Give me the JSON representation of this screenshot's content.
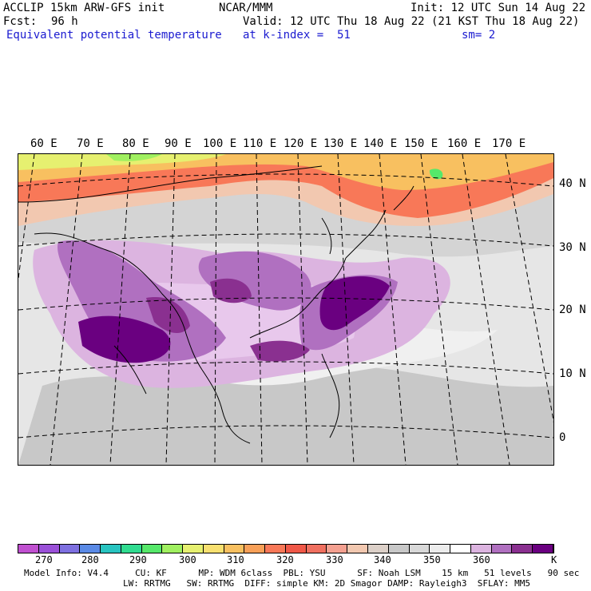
{
  "header": {
    "model": "ACCLIP 15km ARW-GFS init",
    "org": "NCAR/MMM",
    "init": "Init: 12 UTC Sun 14 Aug 22",
    "fcst_label": "Fcst:",
    "fcst_value": "96 h",
    "valid": "Valid: 12 UTC Thu 18 Aug 22 (21 KST Thu 18 Aug 22)",
    "variable": "Equivalent potential temperature",
    "level": "at k-index =  51",
    "smoothing": "sm= 2"
  },
  "map": {
    "longitude_labels": [
      "60 E",
      "70 E",
      "80 E",
      "90 E",
      "100 E",
      "110 E",
      "120 E",
      "130 E",
      "140 E",
      "150 E",
      "160 E",
      "170 E"
    ],
    "latitude_labels": [
      "40 N",
      "30 N",
      "20 N",
      "10 N",
      "0"
    ]
  },
  "colorbar": {
    "colors": [
      "#c050d0",
      "#9a50d8",
      "#7e70e0",
      "#5a8ae6",
      "#28c4c0",
      "#30dc90",
      "#56e86a",
      "#a0f060",
      "#e6f070",
      "#f8e070",
      "#f8c060",
      "#f8a058",
      "#f87858",
      "#f05848",
      "#f07060",
      "#f4a090",
      "#f2c8b0",
      "#dcd0c8",
      "#c8c8c8",
      "#d8d8d8",
      "#ececec",
      "#ffffff",
      "#dcb4e0",
      "#b070c0",
      "#8a3090",
      "#6a0080"
    ],
    "tick_labels": [
      "270",
      "280",
      "290",
      "300",
      "310",
      "320",
      "330",
      "340",
      "350",
      "360"
    ],
    "unit": "K"
  },
  "model_info": {
    "line1": "Model Info: V4.4     CU: KF      MP: WDM 6class  PBL: YSU      SF: Noah LSM    15 km   51 levels   90 sec",
    "line2": "LW: RRTMG   SW: RRTMG  DIFF: simple KM: 2D Smagor DAMP: Rayleigh3  SFLAY: MM5"
  }
}
